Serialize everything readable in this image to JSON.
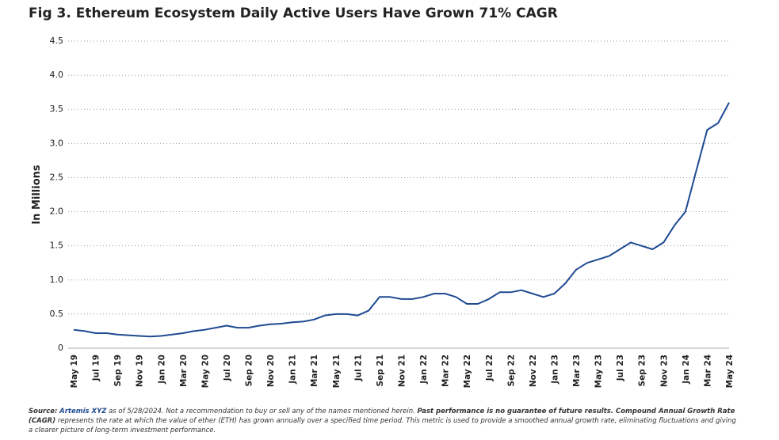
{
  "chart_data": {
    "type": "line",
    "title": "Fig 3. Ethereum Ecosystem Daily Active Users Have Grown 71% CAGR",
    "y_label": "In Millions",
    "color": "#1f4a92",
    "grid": true,
    "categories": [
      "May 19",
      null,
      "Jul 19",
      null,
      "Sep 19",
      null,
      "Nov 19",
      null,
      "Jan 20",
      null,
      "Mar 20",
      null,
      "May 20",
      null,
      "Jul 20",
      null,
      "Sep 20",
      null,
      "Nov 20",
      null,
      "Jan 21",
      null,
      "Mar 21",
      null,
      "May 21",
      null,
      "Jul 21",
      null,
      "Sep 21",
      null,
      "Nov 21",
      null,
      "Jan 22",
      null,
      "Mar 22",
      null,
      "May 22",
      null,
      "Jul 22",
      null,
      "Sep 22",
      null,
      "Nov 22",
      null,
      "Jan 23",
      null,
      "Mar 23",
      null,
      "May 23",
      null,
      "Jul 23",
      null,
      "Sep 23",
      null,
      "Nov 23",
      null,
      "Jan 24",
      null,
      "Mar 24",
      null,
      "May 24"
    ],
    "values": [
      0.27,
      0.25,
      0.22,
      0.22,
      0.2,
      0.19,
      0.18,
      0.17,
      0.18,
      0.2,
      0.22,
      0.25,
      0.27,
      0.3,
      0.33,
      0.3,
      0.3,
      0.33,
      0.35,
      0.36,
      0.38,
      0.39,
      0.42,
      0.48,
      0.5,
      0.5,
      0.48,
      0.55,
      0.75,
      0.75,
      0.72,
      0.72,
      0.75,
      0.8,
      0.8,
      0.75,
      0.65,
      0.65,
      0.72,
      0.82,
      0.82,
      0.85,
      0.8,
      0.75,
      0.8,
      0.95,
      1.15,
      1.25,
      1.3,
      1.35,
      1.45,
      1.55,
      1.5,
      1.45,
      1.55,
      1.8,
      2.0,
      2.6,
      3.2,
      3.3,
      3.6
    ],
    "ylim": [
      0,
      4.5
    ],
    "yticks": [
      0,
      0.5,
      {
        "value": 1,
        "label": "1.0"
      },
      1.5,
      {
        "value": 2,
        "label": "2.0"
      },
      2.5,
      {
        "value": 3,
        "label": "3.0"
      },
      3.5,
      {
        "value": 4,
        "label": "4.0"
      },
      4.5
    ],
    "source": {
      "label": "Source:",
      "name": "Artemis XYZ",
      "text": "as of 5/28/2024. Not a recommendation to buy or sell any of the names mentioned herein.",
      "emphasis": "Past performance is no guarantee of future results. Compound Annual Growth Rate (CAGR)",
      "definition": "represents the rate at which the value of ether (ETH) has grown annually over a specified time period. This metric is used to provide a smoothed annual growth rate, eliminating fluctuations and giving a clearer picture of long-term investment performance."
    }
  }
}
